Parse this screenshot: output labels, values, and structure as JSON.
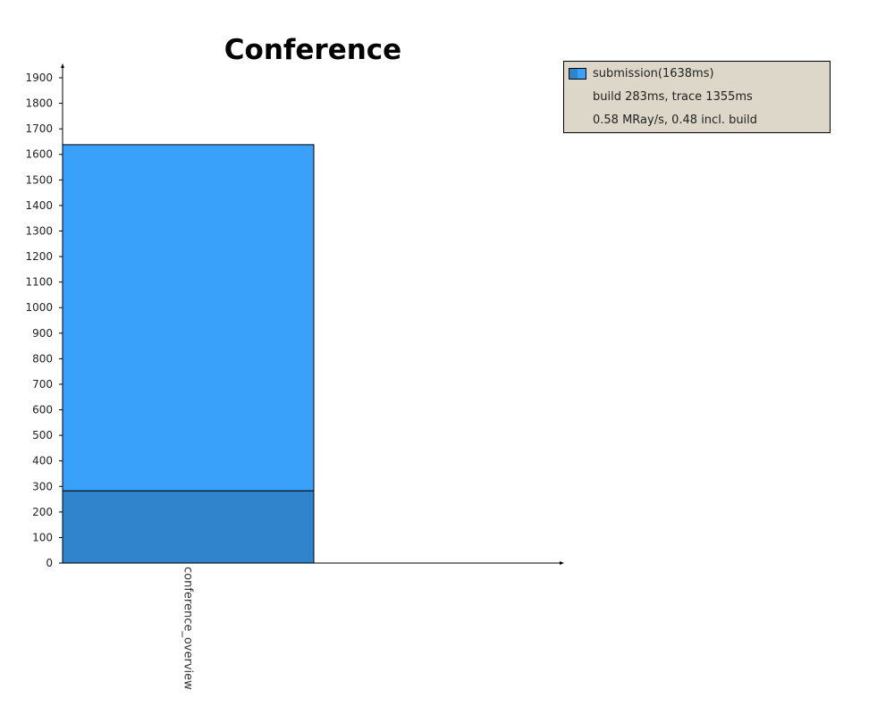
{
  "chart_data": {
    "type": "bar",
    "stacked": true,
    "title": "Conference",
    "xlabel": "",
    "ylabel": "",
    "categories": [
      "conference_overview"
    ],
    "series": [
      {
        "name": "build",
        "values": [
          283
        ],
        "color": "#2f84cc"
      },
      {
        "name": "trace",
        "values": [
          1355
        ],
        "color": "#3aa1fa"
      }
    ],
    "ylim": [
      0,
      1950
    ],
    "yticks": [
      0,
      100,
      200,
      300,
      400,
      500,
      600,
      700,
      800,
      900,
      1000,
      1100,
      1200,
      1300,
      1400,
      1500,
      1600,
      1700,
      1800,
      1900
    ],
    "grid": false,
    "legend": {
      "position": "top-right",
      "entries": [
        {
          "label": "submission(1638ms)",
          "details": [
            "build 283ms, trace 1355ms",
            "0.58 MRay/s, 0.48 incl. build"
          ]
        }
      ]
    }
  }
}
